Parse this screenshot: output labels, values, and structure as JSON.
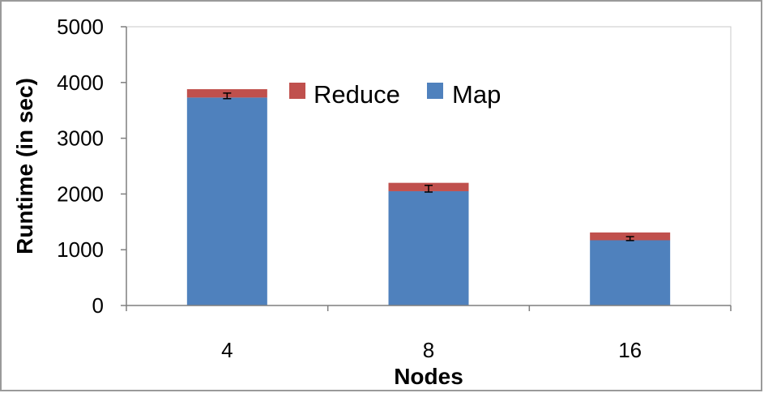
{
  "chart_data": {
    "type": "bar",
    "stacked": true,
    "title": "",
    "xlabel": "Nodes",
    "ylabel": "Runtime (in sec)",
    "categories": [
      "4",
      "8",
      "16"
    ],
    "series": [
      {
        "name": "Map",
        "values": [
          3730,
          2050,
          1170
        ],
        "color": "#4F81BD"
      },
      {
        "name": "Reduce",
        "values": [
          150,
          150,
          140
        ],
        "color": "#C0504D"
      }
    ],
    "error_bars": {
      "centers": [
        3760,
        2095,
        1200
      ],
      "half_ranges": [
        50,
        60,
        35
      ]
    },
    "ylim": [
      0,
      5000
    ],
    "yticks": [
      "0",
      "1000",
      "2000",
      "3000",
      "4000",
      "5000"
    ],
    "grid": false,
    "legend": {
      "position": "top-right",
      "items": [
        {
          "label": "Reduce",
          "color": "#C0504D"
        },
        {
          "label": "Map",
          "color": "#4F81BD"
        }
      ]
    }
  }
}
